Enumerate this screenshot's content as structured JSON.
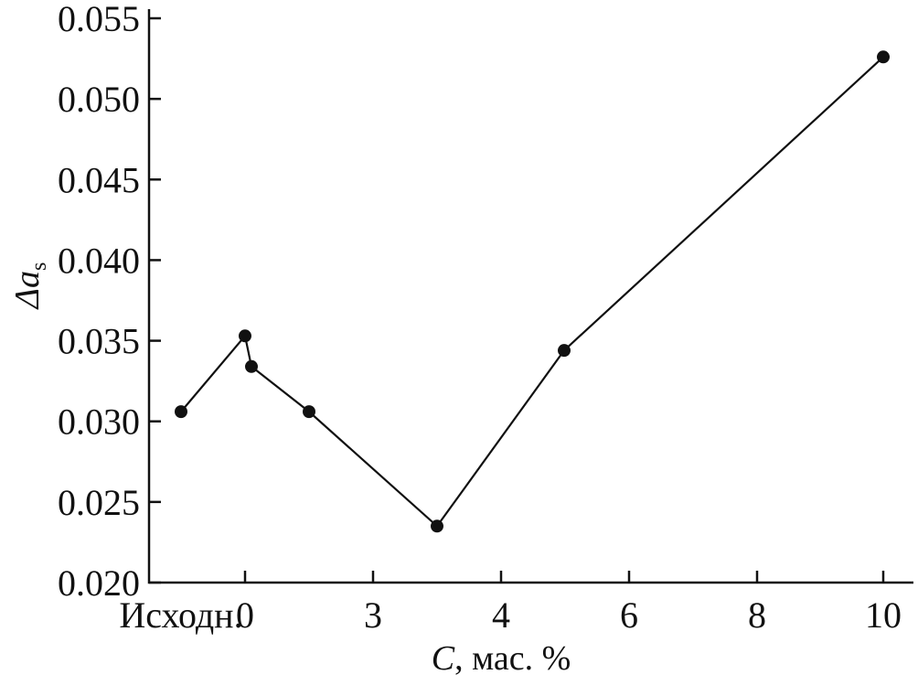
{
  "chart_data": {
    "type": "line",
    "categories": [
      "Исходн.",
      "0",
      "",
      "",
      "3",
      "4",
      "",
      "6",
      "8",
      "10"
    ],
    "x_ticks": [
      "Исходн.",
      "0",
      "3",
      "4",
      "6",
      "8",
      "10"
    ],
    "series": [
      {
        "points": [
          {
            "x": "Исходн.",
            "y": 0.0306
          },
          {
            "x": "0",
            "y": 0.0353
          },
          {
            "x": "0.1",
            "y": 0.0334
          },
          {
            "x": "1",
            "y": 0.0306
          },
          {
            "x": "3",
            "y": 0.0235
          },
          {
            "x": "5",
            "y": 0.0344
          },
          {
            "x": "10",
            "y": 0.0526
          }
        ]
      }
    ],
    "y_ticks": [
      "0.020",
      "0.025",
      "0.030",
      "0.035",
      "0.040",
      "0.045",
      "0.050",
      "0.055"
    ],
    "ylim": [
      0.02,
      0.056
    ],
    "ylabel": "Δa",
    "ylabel_subscript": "s",
    "xlabel_var": "C",
    "xlabel_rest": ", мас. %",
    "grid": false,
    "legend": "none"
  }
}
